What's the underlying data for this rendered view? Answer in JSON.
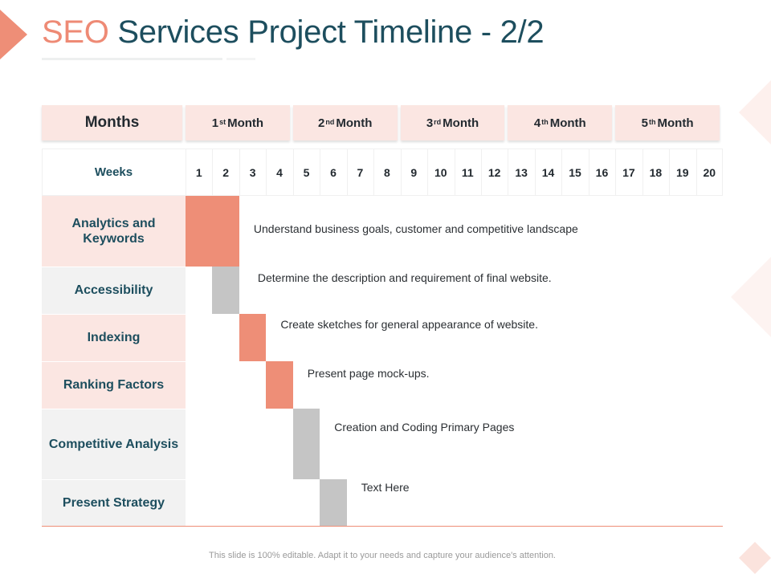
{
  "slide": {
    "title_accent": "SEO",
    "title_main": "Services Project Timeline - 2/2",
    "footer": "This slide is 100% editable. Adapt it to your needs and capture your audience's attention.",
    "colors": {
      "accent": "#ee8e77",
      "gray_bar": "#c5c5c5",
      "navy": "#1d4e5e",
      "header_bg": "#fbe6e2"
    }
  },
  "chart_data": {
    "type": "table",
    "months_label": "Months",
    "months": [
      {
        "num": "1",
        "sup": "st",
        "label": "Month"
      },
      {
        "num": "2",
        "sup": "nd",
        "label": "Month"
      },
      {
        "num": "3",
        "sup": "rd",
        "label": "Month"
      },
      {
        "num": "4",
        "sup": "th",
        "label": "Month"
      },
      {
        "num": "5",
        "sup": "th",
        "label": "Month"
      }
    ],
    "weeks_label": "Weeks",
    "weeks": [
      "1",
      "2",
      "3",
      "4",
      "5",
      "6",
      "7",
      "8",
      "9",
      "10",
      "11",
      "12",
      "13",
      "14",
      "15",
      "16",
      "17",
      "18",
      "19",
      "20"
    ],
    "tasks": [
      {
        "name": "Analytics and Keywords",
        "start_week": 1,
        "end_week": 2,
        "color": "#ee8e77",
        "row_bg": "#fbe6e2",
        "description": "Understand business goals, customer and competitive landscape"
      },
      {
        "name": "Accessibility",
        "start_week": 2,
        "end_week": 2,
        "color": "#c5c5c5",
        "row_bg": "#f2f2f2",
        "description": "Determine the description and requirement of final website."
      },
      {
        "name": "Indexing",
        "start_week": 3,
        "end_week": 3,
        "color": "#ee8e77",
        "row_bg": "#fbe6e2",
        "description": "Create sketches for general appearance of website."
      },
      {
        "name": "Ranking Factors",
        "start_week": 4,
        "end_week": 4,
        "color": "#ee8e77",
        "row_bg": "#fbe6e2",
        "description": "Present page mock-ups."
      },
      {
        "name": "Competitive Analysis",
        "start_week": 5,
        "end_week": 5,
        "color": "#c5c5c5",
        "row_bg": "#f2f2f2",
        "description": "Creation and Coding Primary Pages"
      },
      {
        "name": "Present Strategy",
        "start_week": 6,
        "end_week": 6,
        "color": "#c5c5c5",
        "row_bg": "#f2f2f2",
        "description": "Text Here"
      }
    ]
  }
}
